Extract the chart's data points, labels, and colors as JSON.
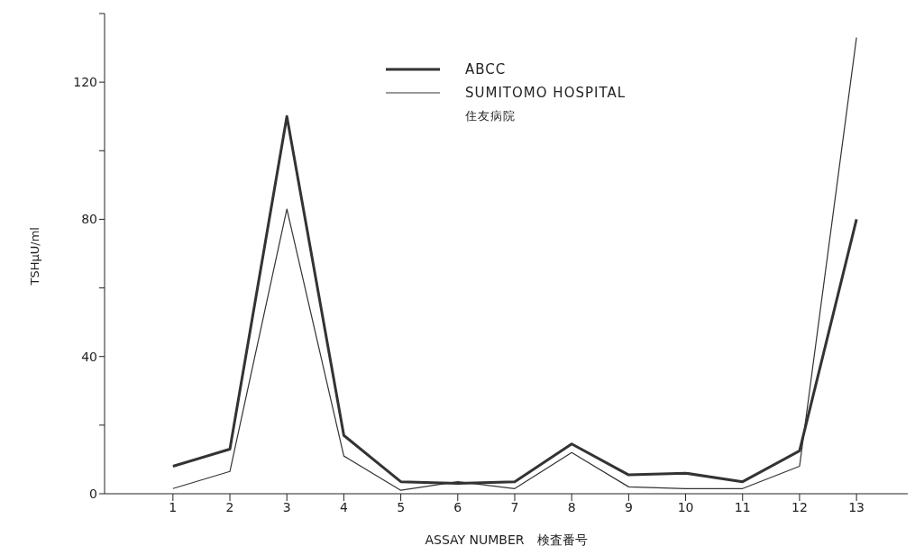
{
  "chart_data": {
    "type": "line",
    "xlabel": "ASSAY NUMBER　検査番号",
    "ylabel": "TSHμU/ml",
    "x": [
      1,
      2,
      3,
      4,
      5,
      6,
      7,
      8,
      9,
      10,
      11,
      12,
      13
    ],
    "xlim": [
      -0.2,
      13.9
    ],
    "xticks": [
      1,
      2,
      3,
      4,
      5,
      6,
      7,
      8,
      9,
      10,
      11,
      12,
      13
    ],
    "ylim": [
      0,
      140
    ],
    "yticks": [
      0,
      {
        "value": 20,
        "label": null
      },
      40,
      {
        "value": 60,
        "label": null
      },
      80,
      {
        "value": 100,
        "label": null
      },
      120,
      {
        "value": 140,
        "label": null
      }
    ],
    "series": [
      {
        "name": "ABCC",
        "color": "#333333",
        "values": [
          8,
          13,
          110,
          17,
          3.5,
          3,
          3.5,
          14.5,
          5.5,
          6,
          3.5,
          12.5,
          80
        ]
      },
      {
        "name": "SUMITOMO HOSPITAL\n住友病院",
        "color": "#333333",
        "values": [
          1.5,
          6.5,
          83,
          11,
          1,
          3.5,
          1.5,
          12,
          2,
          1.5,
          1.5,
          8,
          133
        ]
      }
    ],
    "legend": "top",
    "grid": false,
    "marker": "none",
    "line_style": "solid"
  }
}
